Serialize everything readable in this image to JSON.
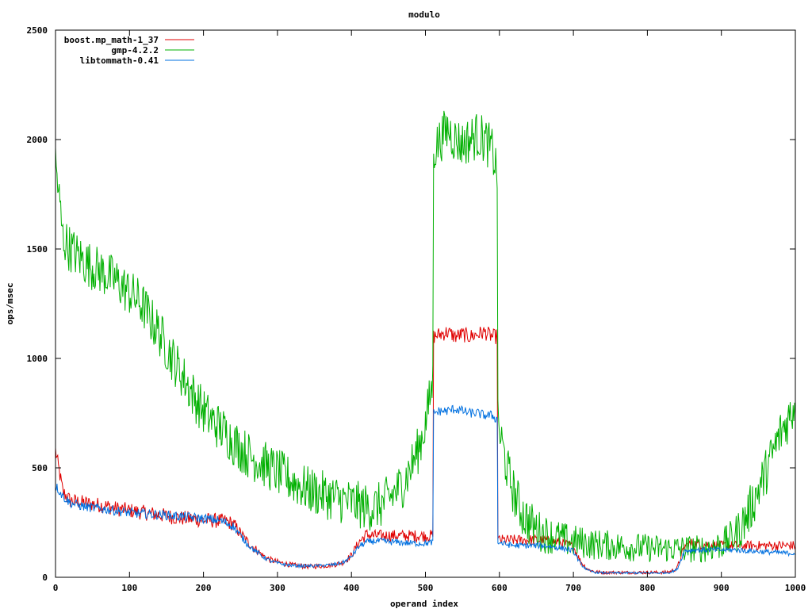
{
  "chart_data": {
    "type": "line",
    "title": "modulo",
    "xlabel": "operand index",
    "ylabel": "ops/msec",
    "xlim": [
      0,
      1000
    ],
    "ylim": [
      0,
      2500
    ],
    "x_ticks": [
      0,
      100,
      200,
      300,
      400,
      500,
      600,
      700,
      800,
      900,
      1000
    ],
    "y_ticks": [
      0,
      500,
      1000,
      1500,
      2000,
      2500
    ],
    "grid": false,
    "legend_position": "top-left",
    "x": [
      0,
      10,
      20,
      30,
      40,
      50,
      60,
      70,
      80,
      90,
      100,
      110,
      120,
      130,
      140,
      150,
      160,
      170,
      180,
      190,
      200,
      210,
      220,
      230,
      240,
      250,
      260,
      270,
      280,
      290,
      300,
      310,
      320,
      330,
      340,
      350,
      360,
      370,
      380,
      390,
      400,
      410,
      420,
      430,
      440,
      450,
      460,
      470,
      480,
      490,
      500,
      510,
      511,
      520,
      530,
      540,
      550,
      560,
      570,
      580,
      590,
      597,
      598,
      610,
      620,
      630,
      640,
      650,
      660,
      670,
      680,
      690,
      700,
      710,
      720,
      730,
      740,
      750,
      760,
      770,
      780,
      790,
      800,
      810,
      820,
      830,
      840,
      850,
      860,
      870,
      880,
      890,
      900,
      910,
      920,
      930,
      940,
      950,
      960,
      970,
      980,
      990,
      1000
    ],
    "series": [
      {
        "name": "boost.mp_math-1_37",
        "color": "#e00000",
        "noise": 35,
        "values": [
          580,
          390,
          350,
          345,
          340,
          335,
          330,
          325,
          315,
          310,
          305,
          300,
          295,
          290,
          285,
          280,
          275,
          270,
          268,
          265,
          262,
          260,
          258,
          255,
          245,
          200,
          160,
          130,
          100,
          80,
          70,
          62,
          56,
          52,
          50,
          50,
          52,
          55,
          60,
          70,
          100,
          160,
          195,
          190,
          190,
          190,
          190,
          190,
          190,
          190,
          190,
          190,
          1100,
          1110,
          1120,
          1100,
          1110,
          1100,
          1110,
          1120,
          1100,
          1100,
          170,
          170,
          170,
          170,
          170,
          170,
          170,
          165,
          160,
          150,
          140,
          70,
          35,
          25,
          22,
          22,
          22,
          22,
          22,
          22,
          22,
          22,
          22,
          25,
          40,
          140,
          155,
          150,
          150,
          148,
          145,
          145,
          145,
          145,
          145,
          145,
          145,
          145,
          145,
          145,
          145
        ]
      },
      {
        "name": "gmp-4.2.2",
        "color": "#00b000",
        "noise": 110,
        "values": [
          1900,
          1550,
          1500,
          1470,
          1440,
          1420,
          1400,
          1380,
          1360,
          1330,
          1300,
          1270,
          1230,
          1170,
          1120,
          1050,
          990,
          930,
          870,
          810,
          760,
          720,
          690,
          660,
          620,
          590,
          560,
          540,
          520,
          500,
          480,
          460,
          440,
          420,
          400,
          390,
          380,
          370,
          360,
          350,
          340,
          330,
          320,
          320,
          330,
          360,
          390,
          430,
          500,
          580,
          700,
          900,
          1950,
          2000,
          2050,
          2000,
          1980,
          2000,
          2020,
          2000,
          1950,
          1850,
          700,
          500,
          380,
          300,
          250,
          220,
          200,
          190,
          180,
          170,
          165,
          160,
          155,
          150,
          148,
          145,
          142,
          140,
          138,
          136,
          134,
          132,
          130,
          130,
          130,
          130,
          130,
          130,
          135,
          140,
          150,
          170,
          200,
          250,
          320,
          400,
          480,
          570,
          660,
          720,
          800
        ]
      },
      {
        "name": "libtommath-0.41",
        "color": "#0070e0",
        "noise": 22,
        "values": [
          420,
          370,
          340,
          330,
          322,
          318,
          314,
          310,
          305,
          300,
          296,
          292,
          290,
          288,
          286,
          284,
          280,
          278,
          275,
          272,
          268,
          265,
          260,
          250,
          235,
          190,
          150,
          120,
          95,
          75,
          65,
          58,
          54,
          52,
          52,
          52,
          54,
          56,
          60,
          70,
          95,
          140,
          160,
          165,
          165,
          162,
          160,
          158,
          156,
          155,
          155,
          160,
          750,
          760,
          760,
          770,
          760,
          750,
          750,
          740,
          740,
          720,
          160,
          150,
          145,
          145,
          145,
          145,
          145,
          140,
          135,
          130,
          120,
          60,
          30,
          22,
          20,
          20,
          20,
          20,
          20,
          20,
          20,
          20,
          20,
          22,
          35,
          120,
          125,
          125,
          125,
          125,
          125,
          125,
          125,
          122,
          120,
          118,
          116,
          114,
          112,
          110,
          110
        ]
      }
    ]
  }
}
